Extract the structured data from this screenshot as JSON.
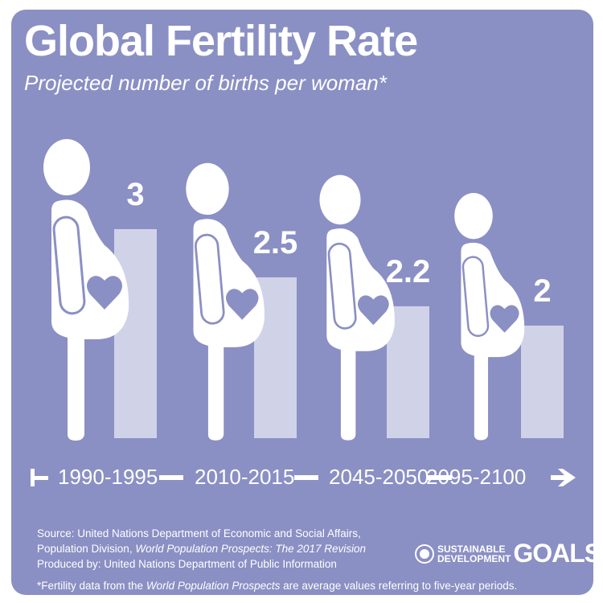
{
  "title": "Global Fertility Rate",
  "subtitle": "Projected number of births per woman*",
  "chart_data": {
    "type": "bar",
    "title": "Global Fertility Rate",
    "subtitle": "Projected number of births per woman*",
    "categories": [
      "1990-1995",
      "2010-2015",
      "2045-2050",
      "2095-2100"
    ],
    "values": [
      3,
      2.5,
      2.2,
      2
    ],
    "data_labels": [
      "3",
      "2.5",
      "2.2",
      "2"
    ],
    "xlabel": "",
    "ylabel": "",
    "grid": false
  },
  "colors": {
    "background": "#8a8fc4",
    "bar": "#d0d2e8",
    "figure": "#ffffff"
  },
  "footer": {
    "source_line1": "Source: United Nations Department of Economic and Social Affairs,",
    "source_line2_prefix": "Population Division, ",
    "source_line2_italic": "World Population Prospects: The 2017 Revision",
    "produced_by": "Produced by: United Nations Department of Public Information",
    "note_prefix": "*Fertility data from the ",
    "note_italic": "World Population Prospects",
    "note_suffix": " are average values referring to five-year periods."
  },
  "logo": {
    "line1": "SUSTAINABLE",
    "line2": "DEVELOPMENT",
    "goals": "GOALS"
  }
}
